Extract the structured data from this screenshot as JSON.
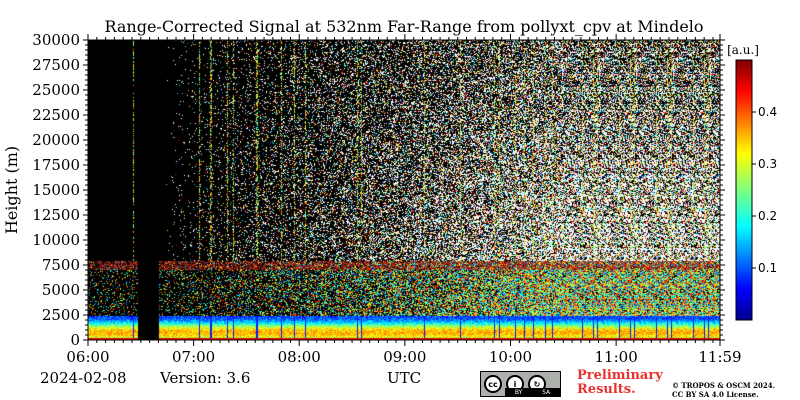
{
  "chart_data": {
    "type": "heatmap",
    "title": "Range-Corrected Signal at 532nm Far-Range from pollyxt_cpv at Mindelo",
    "ylabel": "Height (m)",
    "xlabel": "UTC",
    "xlim": [
      "06:00",
      "11:59"
    ],
    "ylim": [
      0,
      30000
    ],
    "x_ticks": [
      "06:00",
      "07:00",
      "08:00",
      "09:00",
      "10:00",
      "11:00",
      "11:59"
    ],
    "y_ticks": [
      "0",
      "2500",
      "5000",
      "7500",
      "10000",
      "12500",
      "15000",
      "17500",
      "20000",
      "22500",
      "25000",
      "27500",
      "30000"
    ],
    "colorbar": {
      "label": "[a.u.]",
      "ticks": [
        "0.1",
        "0.2",
        "0.3",
        "0.4"
      ],
      "range": [
        0.0,
        0.5
      ],
      "colormap": "jet"
    },
    "no_data_periods": [
      [
        "06:28",
        "06:40"
      ]
    ],
    "aerosol_layer_top_m": 8000,
    "background": "#000000"
  },
  "footer": {
    "date": "2024-02-08",
    "version": "Version: 3.6",
    "utc_label": "UTC",
    "license_badge": {
      "icons": [
        "cc-icon",
        "by-icon",
        "sa-icon"
      ],
      "labels": [
        "BY",
        "SA"
      ]
    },
    "preliminary_line1": "Preliminary",
    "preliminary_line2": "Results.",
    "copyright_line1": "© TROPOS & OSCM 2024.",
    "copyright_line2": "CC BY SA 4.0 License."
  }
}
